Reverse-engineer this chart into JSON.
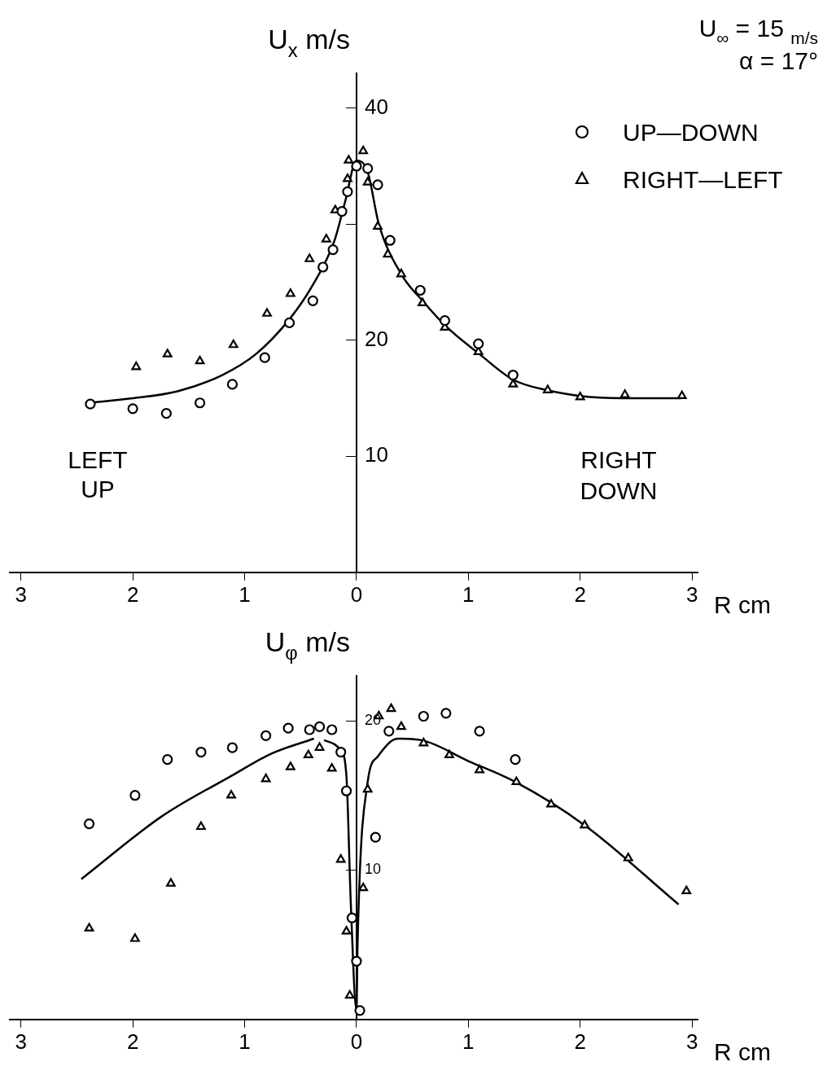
{
  "chart_data": [
    {
      "type": "scatter",
      "xlabel": "R cm",
      "ylabel": "U$_{x}$ m/s",
      "legend": "top right",
      "grid": false,
      "annotations": [
        "U$_{∞}$ = 15 $_{m/s}$\nα = 17°",
        "LEFT\nUP",
        "RIGHT\nDOWN"
      ],
      "xlim": [
        -3.1,
        3.05
      ],
      "xticks": [
        {
          "value": -3,
          "label": "3"
        },
        {
          "value": -2,
          "label": "2"
        },
        {
          "value": -1,
          "label": "1"
        },
        0,
        1,
        2,
        3
      ],
      "ylim": [
        0,
        43
      ],
      "yticks": [
        10,
        20,
        {
          "value": 30,
          "label": null
        },
        40
      ],
      "series": [
        {
          "name": "UP—DOWN",
          "type": "scatter",
          "marker": "circle",
          "color": "#000000",
          "x": [
            -2.38,
            -2.0,
            -1.7,
            -1.4,
            -1.11,
            -0.82,
            -0.6,
            -0.39,
            -0.3,
            -0.21,
            -0.13,
            -0.08,
            0,
            0.1,
            0.19,
            0.3,
            0.57,
            0.79,
            1.09,
            1.4
          ],
          "values": [
            14.5,
            14.1,
            13.7,
            14.6,
            16.2,
            18.5,
            21.5,
            23.4,
            26.3,
            27.8,
            31.1,
            32.8,
            35.0,
            34.8,
            33.4,
            28.6,
            24.3,
            21.7,
            19.7,
            17.0
          ]
        },
        {
          "name": "RIGHT—LEFT",
          "type": "scatter",
          "marker": "triangle",
          "color": "#000000",
          "x": [
            -1.97,
            -1.69,
            -1.4,
            -1.1,
            -0.8,
            -0.59,
            -0.42,
            -0.27,
            -0.19,
            -0.08,
            -0.07,
            0.06,
            0.1,
            0.19,
            0.28,
            0.4,
            0.59,
            0.79,
            1.09,
            1.4,
            1.71,
            2.0,
            2.4,
            2.91
          ],
          "values": [
            17.7,
            18.8,
            18.2,
            19.6,
            22.3,
            24.0,
            27.0,
            28.7,
            31.2,
            33.9,
            35.5,
            36.3,
            33.6,
            29.8,
            27.4,
            25.7,
            23.2,
            21.1,
            19.0,
            16.2,
            15.7,
            15.1,
            15.3,
            15.2
          ]
        },
        {
          "type": "line",
          "marker": "none",
          "line_style": "solid",
          "color": "#000000",
          "x": [
            -2.4,
            -2.0,
            -1.6,
            -1.2,
            -0.9,
            -0.6,
            -0.4,
            -0.2,
            -0.1,
            0,
            0.1,
            0.2,
            0.4,
            0.6,
            0.8,
            1.1,
            1.4,
            1.7,
            2.0,
            2.4,
            2.9
          ],
          "values": [
            14.6,
            15.0,
            15.6,
            17.0,
            18.8,
            21.8,
            24.6,
            28.5,
            32.0,
            35.5,
            34.5,
            30.0,
            25.7,
            23.3,
            21.2,
            18.8,
            16.6,
            15.7,
            15.2,
            15.0,
            15.0
          ]
        }
      ]
    },
    {
      "type": "scatter",
      "xlabel": "R cm",
      "ylabel": "U$_{φ}$ m/s",
      "legend": false,
      "grid": false,
      "xlim": [
        -3.1,
        3.05
      ],
      "xticks": [
        {
          "value": -3,
          "label": "3"
        },
        {
          "value": -2,
          "label": "2"
        },
        {
          "value": -1,
          "label": "1"
        },
        0,
        1,
        2,
        3
      ],
      "ylim": [
        0,
        23
      ],
      "yticks": [
        10,
        20
      ],
      "series": [
        {
          "type": "scatter",
          "marker": "circle",
          "color": "#000000",
          "x": [
            -2.39,
            -1.98,
            -1.69,
            -1.39,
            -1.11,
            -0.81,
            -0.61,
            -0.42,
            -0.33,
            -0.22,
            -0.14,
            -0.09,
            -0.04,
            0.0,
            0.03,
            0.17,
            0.29,
            0.6,
            0.8,
            1.1,
            1.42
          ],
          "values": [
            13.1,
            15.0,
            17.4,
            17.9,
            18.2,
            19.0,
            19.5,
            19.4,
            19.6,
            19.4,
            17.9,
            15.3,
            6.8,
            3.9,
            0.6,
            12.2,
            19.3,
            20.3,
            20.5,
            19.3,
            17.4
          ]
        },
        {
          "type": "scatter",
          "marker": "triangle",
          "color": "#000000",
          "x": [
            -2.39,
            -1.98,
            -1.66,
            -1.39,
            -1.12,
            -0.81,
            -0.59,
            -0.43,
            -0.33,
            -0.22,
            -0.14,
            -0.09,
            -0.06,
            0.06,
            0.1,
            0.2,
            0.31,
            0.4,
            0.6,
            0.83,
            1.1,
            1.43,
            1.74,
            2.04,
            2.43,
            2.95
          ],
          "values": [
            6.1,
            5.4,
            9.1,
            12.9,
            15.0,
            16.1,
            16.9,
            17.7,
            18.2,
            16.8,
            10.7,
            5.9,
            1.6,
            8.8,
            15.4,
            20.3,
            20.8,
            19.6,
            18.5,
            17.7,
            16.7,
            15.9,
            14.4,
            13.0,
            10.8,
            8.6
          ]
        },
        {
          "type": "line",
          "marker": "none",
          "line_style": "solid",
          "color": "#000000",
          "x": [
            -2.46,
            -1.74,
            -1.12,
            -0.76,
            -0.38
          ],
          "values": [
            9.4,
            13.6,
            16.3,
            17.8,
            18.8
          ]
        },
        {
          "type": "line",
          "marker": "none",
          "line_style": "solid",
          "color": "#000000",
          "x": [
            -0.29,
            -0.14,
            -0.09,
            -0.05,
            0,
            0.01,
            0.1,
            0.19,
            0.37,
            0.58,
            1.0,
            1.42,
            2.04,
            2.88
          ],
          "values": [
            18.7,
            18.0,
            16.3,
            7.6,
            0.6,
            5.2,
            15.9,
            17.6,
            18.8,
            18.7,
            17.3,
            15.9,
            13.0,
            7.7
          ]
        }
      ]
    }
  ]
}
